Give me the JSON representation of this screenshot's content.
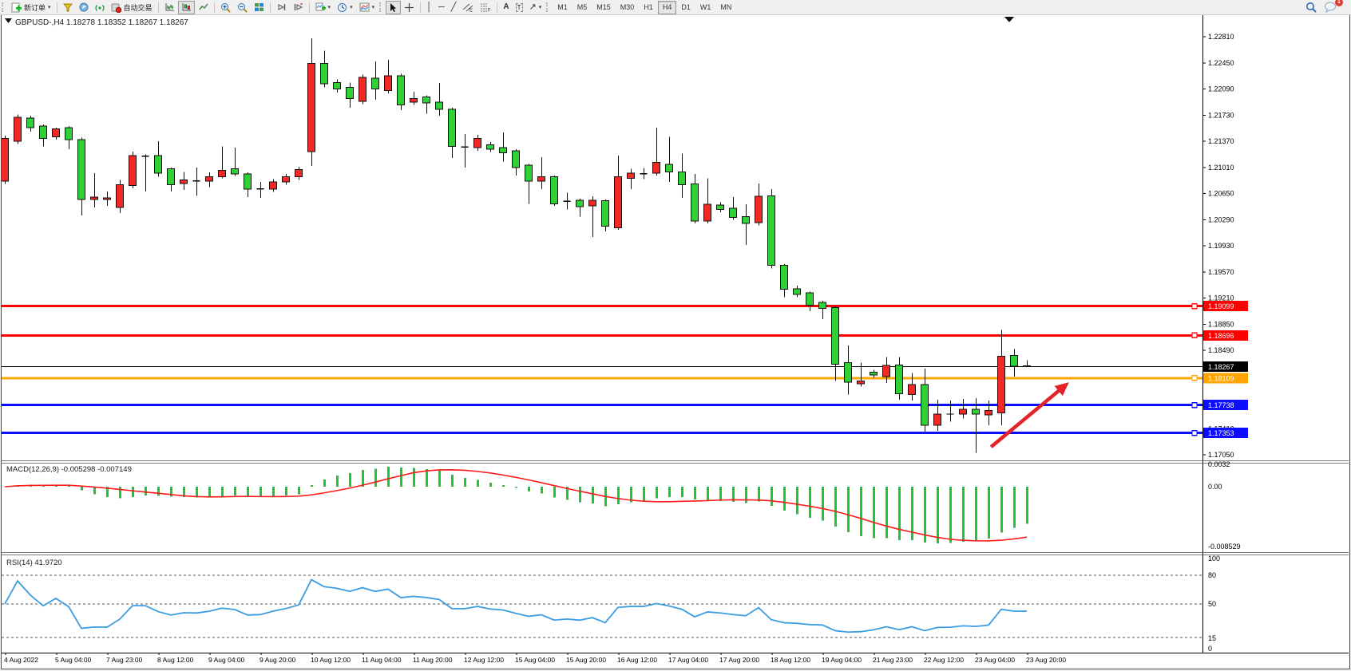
{
  "toolbar": {
    "new_order_label": "新订单",
    "autotrade_label": "自动交易",
    "timeframes": [
      "M1",
      "M5",
      "M15",
      "M30",
      "H1",
      "H4",
      "D1",
      "W1",
      "MN"
    ],
    "active_timeframe": "H4",
    "chat_badge": "1"
  },
  "window": {
    "title_symbol": "GBPUSD-,H4",
    "title_display": "GBPUSD-,H4  1.18278 1.18352 1.18267 1.18267",
    "ohlc": {
      "open": "1.18278",
      "high": "1.18352",
      "low": "1.18267",
      "close": "1.18267"
    }
  },
  "chart_data": {
    "type": "candlestick",
    "symbol": "GBPUSD-",
    "timeframe": "H4",
    "title": "GBPUSD-,H4",
    "ylim": [
      1.1705,
      1.2281
    ],
    "y_ticks": [
      "1.22810",
      "1.22450",
      "1.22090",
      "1.21730",
      "1.21370",
      "1.21010",
      "1.20650",
      "1.20290",
      "1.19930",
      "1.19570",
      "1.19210",
      "1.18850",
      "1.18490",
      "1.18130",
      "1.17770",
      "1.17410",
      "1.17050"
    ],
    "x_labels": [
      "4 Aug 2022",
      "5 Aug 04:00",
      "7 Aug 23:00",
      "8 Aug 12:00",
      "9 Aug 04:00",
      "9 Aug 20:00",
      "10 Aug 12:00",
      "11 Aug 04:00",
      "11 Aug 20:00",
      "12 Aug 12:00",
      "15 Aug 04:00",
      "15 Aug 20:00",
      "16 Aug 12:00",
      "17 Aug 04:00",
      "17 Aug 20:00",
      "18 Aug 12:00",
      "19 Aug 04:00",
      "21 Aug 23:00",
      "22 Aug 12:00",
      "23 Aug 04:00",
      "23 Aug 20:00"
    ],
    "ohlc": [
      [
        1.2082,
        1.2145,
        1.2078,
        1.2141
      ],
      [
        1.2137,
        1.2174,
        1.2133,
        1.217
      ],
      [
        1.2169,
        1.2172,
        1.215,
        1.2156
      ],
      [
        1.2158,
        1.216,
        1.213,
        1.2141
      ],
      [
        1.2143,
        1.2156,
        1.2139,
        1.2154
      ],
      [
        1.2156,
        1.2158,
        1.2126,
        1.2139
      ],
      [
        1.2139,
        1.2142,
        1.2035,
        1.2057
      ],
      [
        1.2057,
        1.2093,
        1.2046,
        1.206
      ],
      [
        1.2057,
        1.2068,
        1.2048,
        1.2059
      ],
      [
        1.2046,
        1.2084,
        1.2038,
        1.2077
      ],
      [
        1.2076,
        1.2123,
        1.2072,
        1.2117
      ],
      [
        1.2116,
        1.2119,
        1.2068,
        1.2117
      ],
      [
        1.2117,
        1.2137,
        1.2088,
        1.2093
      ],
      [
        1.2099,
        1.2101,
        1.2068,
        1.2077
      ],
      [
        1.2079,
        1.2095,
        1.207,
        1.2084
      ],
      [
        1.2082,
        1.2101,
        1.2062,
        1.2083
      ],
      [
        1.2082,
        1.2094,
        1.2074,
        1.2088
      ],
      [
        1.2088,
        1.213,
        1.2086,
        1.2097
      ],
      [
        1.2099,
        1.2128,
        1.2089,
        1.2092
      ],
      [
        1.2092,
        1.2094,
        1.206,
        1.2071
      ],
      [
        1.2071,
        1.2081,
        1.2059,
        1.2072
      ],
      [
        1.2071,
        1.2085,
        1.2067,
        1.2081
      ],
      [
        1.2081,
        1.2092,
        1.2077,
        1.2088
      ],
      [
        1.2088,
        1.2102,
        1.2084,
        1.2098
      ],
      [
        1.2123,
        1.2279,
        1.2103,
        1.2244
      ],
      [
        1.2244,
        1.2262,
        1.2211,
        1.2216
      ],
      [
        1.2218,
        1.2222,
        1.2204,
        1.2209
      ],
      [
        1.2211,
        1.2218,
        1.2183,
        1.2196
      ],
      [
        1.2192,
        1.2229,
        1.2188,
        1.2225
      ],
      [
        1.2224,
        1.2247,
        1.2194,
        1.2209
      ],
      [
        1.2207,
        1.2249,
        1.2203,
        1.2227
      ],
      [
        1.2227,
        1.223,
        1.218,
        1.2187
      ],
      [
        1.2191,
        1.2205,
        1.2187,
        1.2196
      ],
      [
        1.2198,
        1.22,
        1.2175,
        1.219
      ],
      [
        1.2191,
        1.2217,
        1.2172,
        1.2181
      ],
      [
        1.2181,
        1.2183,
        1.2114,
        1.213
      ],
      [
        1.2129,
        1.2147,
        1.2101,
        1.213
      ],
      [
        1.2128,
        1.2146,
        1.2124,
        1.2141
      ],
      [
        1.2132,
        1.2136,
        1.2122,
        1.2126
      ],
      [
        1.2128,
        1.2149,
        1.2109,
        1.2121
      ],
      [
        1.2124,
        1.2126,
        1.209,
        1.2101
      ],
      [
        1.2104,
        1.2106,
        1.2051,
        1.2082
      ],
      [
        1.2082,
        1.2115,
        1.2071,
        1.2088
      ],
      [
        1.2088,
        1.209,
        1.2048,
        1.2051
      ],
      [
        1.2054,
        1.2066,
        1.2043,
        1.2055
      ],
      [
        1.2056,
        1.2058,
        1.2033,
        1.2047
      ],
      [
        1.2048,
        1.2061,
        1.2005,
        1.2056
      ],
      [
        1.2055,
        1.2057,
        1.2013,
        1.202
      ],
      [
        1.2018,
        1.2117,
        1.2015,
        1.2088
      ],
      [
        1.2086,
        1.2099,
        1.2071,
        1.2093
      ],
      [
        1.2092,
        1.21,
        1.2085,
        1.2093
      ],
      [
        1.2093,
        1.2156,
        1.209,
        1.2108
      ],
      [
        1.2105,
        1.2143,
        1.2081,
        1.2095
      ],
      [
        1.2095,
        1.212,
        1.2059,
        1.2077
      ],
      [
        1.2078,
        1.2092,
        1.2024,
        1.2027
      ],
      [
        1.2027,
        1.2086,
        1.2024,
        1.205
      ],
      [
        1.2049,
        1.2053,
        1.2039,
        1.2043
      ],
      [
        1.2045,
        1.206,
        1.2029,
        1.2032
      ],
      [
        1.2033,
        1.205,
        1.1994,
        1.2024
      ],
      [
        1.2025,
        1.2079,
        1.2021,
        1.2061
      ],
      [
        1.2062,
        1.2071,
        1.1962,
        1.1966
      ],
      [
        1.1966,
        1.1968,
        1.1922,
        1.1933
      ],
      [
        1.1934,
        1.1938,
        1.1922,
        1.1926
      ],
      [
        1.1928,
        1.193,
        1.1903,
        1.1911
      ],
      [
        1.1915,
        1.1917,
        1.1892,
        1.1907
      ],
      [
        1.1908,
        1.191,
        1.1807,
        1.183
      ],
      [
        1.1832,
        1.1856,
        1.1788,
        1.1805
      ],
      [
        1.1803,
        1.1832,
        1.1799,
        1.1807
      ],
      [
        1.1819,
        1.1822,
        1.1811,
        1.1815
      ],
      [
        1.1813,
        1.184,
        1.1804,
        1.1828
      ],
      [
        1.1829,
        1.184,
        1.1781,
        1.1789
      ],
      [
        1.1788,
        1.1818,
        1.178,
        1.1802
      ],
      [
        1.1802,
        1.1824,
        1.1737,
        1.1746
      ],
      [
        1.1746,
        1.1781,
        1.1738,
        1.1761
      ],
      [
        1.1762,
        1.178,
        1.1751,
        1.1762
      ],
      [
        1.1761,
        1.1782,
        1.1755,
        1.1768
      ],
      [
        1.1768,
        1.1783,
        1.1708,
        1.1761
      ],
      [
        1.176,
        1.178,
        1.1746,
        1.1766
      ],
      [
        1.1763,
        1.1877,
        1.1746,
        1.1841
      ],
      [
        1.1842,
        1.1851,
        1.1813,
        1.1827
      ],
      [
        1.18278,
        1.18352,
        1.18267,
        1.18267
      ]
    ],
    "current_price": "1.18267",
    "horizontal_lines": [
      {
        "label": "1.19099",
        "value": 1.19099,
        "color": "#ff0000",
        "width": 3,
        "handle": true,
        "role": "resistance"
      },
      {
        "label": "1.18696",
        "value": 1.18696,
        "color": "#ff0000",
        "width": 3,
        "handle": true,
        "role": "resistance"
      },
      {
        "label": "1.18267",
        "value": 1.18267,
        "color": "#000000",
        "width": 1,
        "handle": false,
        "role": "bid-price"
      },
      {
        "label": "1.18109",
        "value": 1.18109,
        "color": "#ffa500",
        "width": 3,
        "handle": true,
        "role": "pivot"
      },
      {
        "label": "1.17738",
        "value": 1.17738,
        "color": "#0d0dff",
        "width": 3,
        "handle": true,
        "role": "support"
      },
      {
        "label": "1.17353",
        "value": 1.17353,
        "color": "#0d0dff",
        "width": 3,
        "handle": true,
        "role": "support"
      }
    ],
    "annotations": [
      {
        "type": "arrow",
        "color": "#e32128",
        "x1_bar": 77.2,
        "y1_price": 1.1716,
        "x2_bar": 83.3,
        "y2_price": 1.1805,
        "meaning": "projected up move"
      }
    ],
    "indicators": {
      "macd": {
        "label": "MACD(12,26,9)",
        "params": [
          12,
          26,
          9
        ],
        "main_value": "-0.005298",
        "signal_value": "-0.007149",
        "display": "MACD(12,26,9) -0.005298 -0.007149",
        "axis_labels": [
          {
            "text": "0.0032",
            "v": 0.0032
          },
          {
            "text": "0.00",
            "v": 0
          },
          {
            "text": "-0.008529",
            "v": -0.008529
          }
        ],
        "histogram_color": "#1fc532",
        "signal_color": "#ff1a1a"
      },
      "rsi": {
        "label": "RSI(14)",
        "value": "41.9720",
        "display": "RSI(14) 41.9720",
        "levels": [
          80,
          50,
          15
        ],
        "axis_labels": [
          "100",
          "80",
          "50",
          "15",
          "0"
        ],
        "line_color": "#3b9ce2"
      }
    },
    "candle_colors": {
      "up": "#ef2b24",
      "down": "#2fd134",
      "outline": "#111111"
    }
  }
}
